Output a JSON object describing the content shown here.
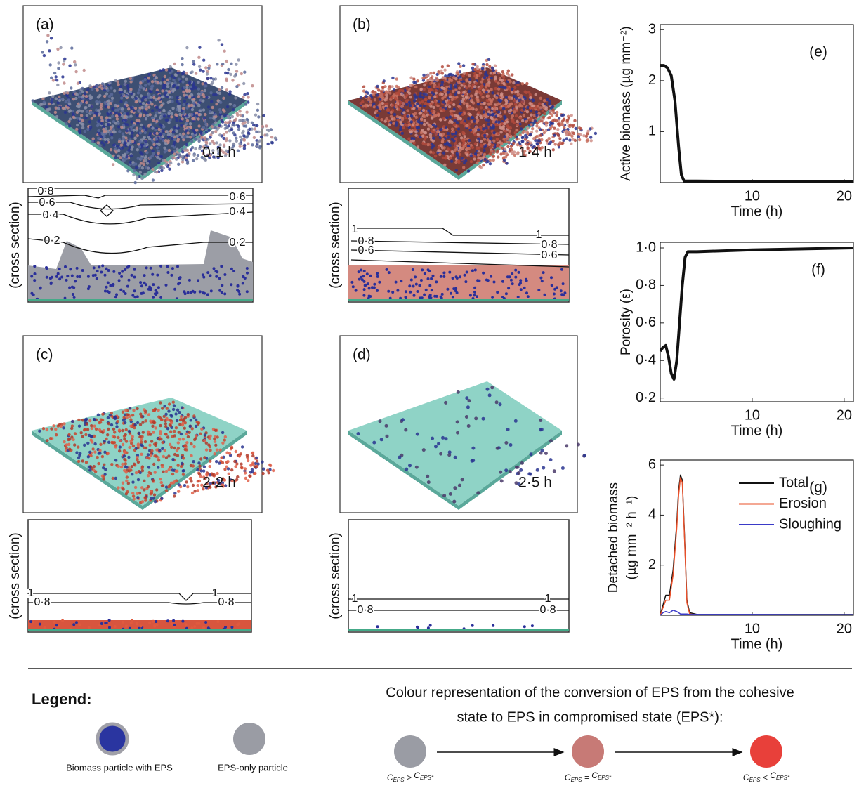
{
  "panels": [
    {
      "label": "(a)",
      "time": "0·1 h",
      "cross_label": "(cross section)",
      "contours": [
        "0·8",
        "0·6",
        "0·4",
        "0·2",
        "0·6",
        "0·4",
        "0·2"
      ]
    },
    {
      "label": "(b)",
      "time": "1·4 h",
      "cross_label": "(cross section)",
      "contours": [
        "1",
        "0·8",
        "0·6",
        "1",
        "0·8",
        "0·6"
      ]
    },
    {
      "label": "(c)",
      "time": "2·2 h",
      "cross_label": "(cross section)",
      "contours": [
        "1",
        "0·8",
        "1",
        "0·8"
      ]
    },
    {
      "label": "(d)",
      "time": "2·5 h",
      "cross_label": "(cross section)",
      "contours": [
        "1",
        "0·8",
        "1",
        "0·8"
      ]
    }
  ],
  "chart_data": [
    {
      "type": "line",
      "panel_label": "(e)",
      "y_label": "Active biomass (µg mm⁻²)",
      "x_label": "Time (h)",
      "x": [
        0,
        0.4,
        0.8,
        1.2,
        1.6,
        2.0,
        2.3,
        2.6,
        4,
        10,
        21
      ],
      "series": [
        {
          "color": "#111111",
          "values": [
            2.3,
            2.3,
            2.25,
            2.1,
            1.6,
            0.7,
            0.15,
            0.03,
            0.03,
            0.02,
            0.02
          ]
        }
      ],
      "xlim": [
        0,
        21
      ],
      "ylim": [
        0,
        3.1
      ],
      "xticks": [
        10,
        20
      ],
      "yticks": [
        1,
        2,
        3
      ]
    },
    {
      "type": "line",
      "panel_label": "(f)",
      "y_label": "Porosity (ε)",
      "x_label": "Time (h)",
      "x": [
        0,
        0.3,
        0.6,
        0.9,
        1.2,
        1.5,
        1.8,
        2.1,
        2.4,
        2.7,
        3.0,
        4,
        10,
        21
      ],
      "series": [
        {
          "color": "#111111",
          "values": [
            0.45,
            0.47,
            0.48,
            0.42,
            0.33,
            0.3,
            0.4,
            0.6,
            0.8,
            0.95,
            0.98,
            0.98,
            0.99,
            1.0
          ]
        }
      ],
      "xlim": [
        0,
        21
      ],
      "ylim": [
        0.18,
        1.03
      ],
      "xticks": [
        10,
        20
      ],
      "yticks": [
        {
          "value": 0.2,
          "label": "0·2"
        },
        {
          "value": 0.4,
          "label": "0·4"
        },
        {
          "value": 0.6,
          "label": "0·6"
        },
        {
          "value": 0.8,
          "label": "0·8"
        },
        {
          "value": 1.0,
          "label": "1·0"
        }
      ]
    },
    {
      "type": "line",
      "panel_label": "(g)",
      "y_label": [
        "Detached biomass",
        "(µg mm⁻² h⁻¹)"
      ],
      "x_label": "Time  (h)",
      "x": [
        0,
        0.3,
        0.6,
        1,
        1.4,
        1.8,
        2.0,
        2.2,
        2.4,
        2.6,
        2.9,
        3.2,
        4,
        10,
        21
      ],
      "series": [
        {
          "name": "Total",
          "color": "#111111",
          "values": [
            0,
            0.4,
            0.8,
            0.8,
            1.8,
            3.7,
            5.0,
            5.6,
            5.4,
            3.6,
            0.6,
            0.1,
            0.03,
            0.03,
            0.03
          ]
        },
        {
          "name": "Erosion",
          "color": "#e8502a",
          "values": [
            0,
            0.3,
            0.6,
            0.6,
            1.6,
            3.5,
            4.8,
            5.5,
            5.3,
            3.5,
            0.5,
            0.05,
            0.02,
            0.02,
            0.02
          ]
        },
        {
          "name": "Sloughing",
          "color": "#3a3ac8",
          "values": [
            0,
            0.1,
            0.15,
            0.1,
            0.2,
            0.15,
            0.1,
            0.05,
            0.05,
            0.05,
            0.05,
            0.03,
            0.03,
            0.03,
            0.02
          ]
        }
      ],
      "xlim": [
        0,
        21
      ],
      "ylim": [
        0,
        6.2
      ],
      "xticks": [
        10,
        20
      ],
      "yticks": [
        2,
        4,
        6
      ],
      "legend": "upper right"
    }
  ],
  "legend": {
    "title": "Legend:",
    "biomass": "Biomass particle with EPS",
    "eps_only": "EPS-only particle",
    "colour_title": [
      "Colour representation of the conversion of EPS from the cohesive",
      "state to EPS in compromised state (EPS*):"
    ],
    "conditions": [
      {
        "var": "C",
        "left_sub": "EPS",
        "op": " > ",
        "right_sub": "EPS*"
      },
      {
        "var": "C",
        "left_sub": "EPS",
        "op": " = ",
        "right_sub": "EPS*"
      },
      {
        "var": "C",
        "left_sub": "EPS",
        "op": " < ",
        "right_sub": "EPS*"
      }
    ]
  }
}
